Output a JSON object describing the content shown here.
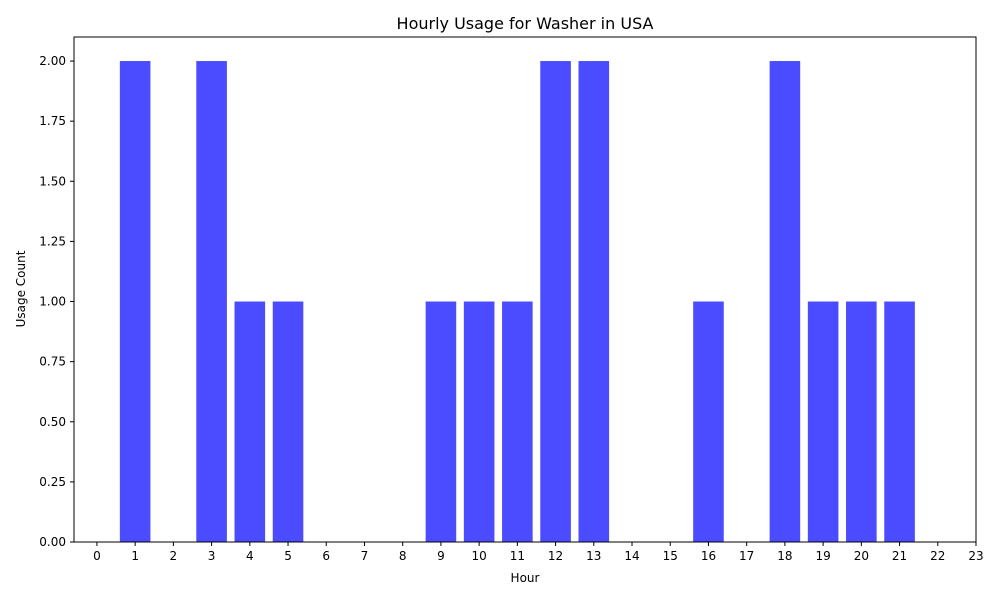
{
  "chart_data": {
    "type": "bar",
    "title": "Hourly Usage for Washer in USA",
    "xlabel": "Hour",
    "ylabel": "Usage Count",
    "x": [
      1,
      3,
      4,
      5,
      9,
      10,
      11,
      12,
      13,
      16,
      18,
      19,
      20,
      21
    ],
    "values": [
      2,
      2,
      1,
      1,
      1,
      1,
      1,
      2,
      2,
      1,
      2,
      1,
      1,
      1
    ],
    "xticks": [
      0,
      1,
      2,
      3,
      4,
      5,
      6,
      7,
      8,
      9,
      10,
      11,
      12,
      13,
      14,
      15,
      16,
      17,
      18,
      19,
      20,
      21,
      22,
      23
    ],
    "yticks": [
      "0.00",
      "0.25",
      "0.50",
      "0.75",
      "1.00",
      "1.25",
      "1.50",
      "1.75",
      "2.00"
    ],
    "xlim": [
      -0.6,
      23
    ],
    "ylim": [
      0,
      2.1
    ],
    "bar_color": "#4b4bff",
    "grid": false,
    "legend": "none"
  }
}
